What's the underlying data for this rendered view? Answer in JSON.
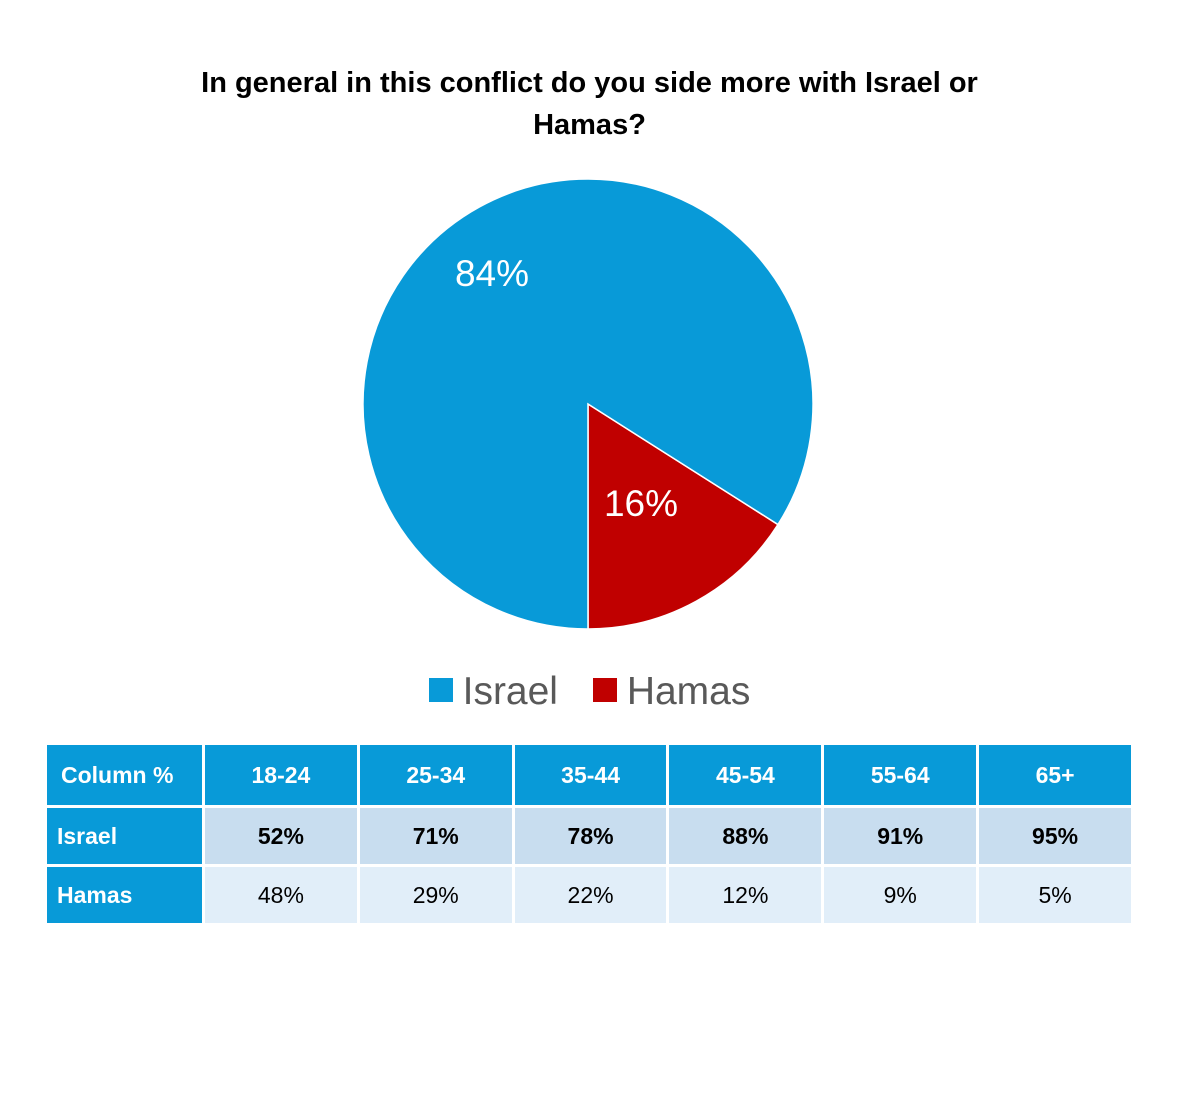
{
  "chart_data": {
    "type": "pie",
    "title": "In general in this conflict do you side more with Israel or Hamas?",
    "slices": [
      {
        "label": "Israel",
        "value": 84,
        "display": "84%",
        "color": "#089ad8"
      },
      {
        "label": "Hamas",
        "value": 16,
        "display": "16%",
        "color": "#c00000"
      }
    ],
    "legend": [
      "Israel",
      "Hamas"
    ],
    "legend_position": "bottom"
  },
  "table": {
    "corner_header": "Column %",
    "columns": [
      "18-24",
      "25-34",
      "35-44",
      "45-54",
      "55-64",
      "65+"
    ],
    "rows": [
      {
        "label": "Israel",
        "values": [
          "52%",
          "71%",
          "78%",
          "88%",
          "91%",
          "95%"
        ]
      },
      {
        "label": "Hamas",
        "values": [
          "48%",
          "29%",
          "22%",
          "12%",
          "9%",
          "5%"
        ]
      }
    ],
    "header_color": "#089ad8"
  }
}
